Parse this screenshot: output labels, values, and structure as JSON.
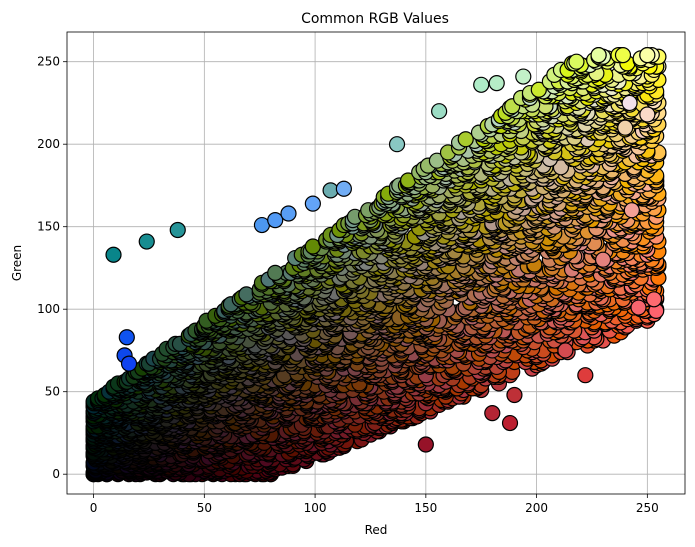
{
  "chart_data": {
    "type": "scatter",
    "title": "Common RGB Values",
    "xlabel": "Red",
    "ylabel": "Green",
    "xlim": [
      -12,
      267
    ],
    "ylim": [
      -12,
      268
    ],
    "xticks": [
      0,
      50,
      100,
      150,
      200,
      250
    ],
    "yticks": [
      0,
      50,
      100,
      150,
      200,
      250
    ],
    "grid": true,
    "legend": "none",
    "marker_edge_color": "#000000",
    "points": [
      {
        "r": 9,
        "g": 133,
        "b": 138
      },
      {
        "r": 24,
        "g": 141,
        "b": 145
      },
      {
        "r": 38,
        "g": 148,
        "b": 152
      },
      {
        "r": 15,
        "g": 83,
        "b": 240
      },
      {
        "r": 14,
        "g": 72,
        "b": 235
      },
      {
        "r": 16,
        "g": 67,
        "b": 240
      },
      {
        "r": 76,
        "g": 151,
        "b": 240
      },
      {
        "r": 82,
        "g": 154,
        "b": 245
      },
      {
        "r": 88,
        "g": 158,
        "b": 245
      },
      {
        "r": 99,
        "g": 164,
        "b": 247
      },
      {
        "r": 107,
        "g": 172,
        "b": 175
      },
      {
        "r": 113,
        "g": 173,
        "b": 245
      },
      {
        "r": 137,
        "g": 200,
        "b": 195
      },
      {
        "r": 156,
        "g": 220,
        "b": 196
      },
      {
        "r": 175,
        "g": 236,
        "b": 200
      },
      {
        "r": 182,
        "g": 237,
        "b": 198
      },
      {
        "r": 194,
        "g": 241,
        "b": 200
      },
      {
        "r": 222,
        "g": 60,
        "b": 60
      },
      {
        "r": 188,
        "g": 31,
        "b": 48
      },
      {
        "r": 180,
        "g": 37,
        "b": 52
      },
      {
        "r": 150,
        "g": 18,
        "b": 40
      },
      {
        "r": 190,
        "g": 48,
        "b": 55
      },
      {
        "r": 213,
        "g": 75,
        "b": 80
      },
      {
        "r": 254,
        "g": 99,
        "b": 110
      },
      {
        "r": 246,
        "g": 101,
        "b": 110
      },
      {
        "r": 253,
        "g": 106,
        "b": 112
      },
      {
        "r": 230,
        "g": 130,
        "b": 125
      },
      {
        "r": 243,
        "g": 160,
        "b": 150
      },
      {
        "r": 240,
        "g": 210,
        "b": 170
      },
      {
        "r": 250,
        "g": 218,
        "b": 200
      },
      {
        "r": 242,
        "g": 225,
        "b": 235
      }
    ]
  }
}
